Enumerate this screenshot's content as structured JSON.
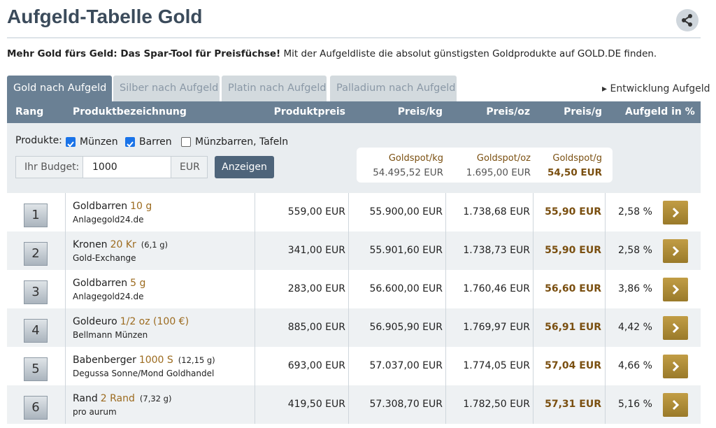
{
  "header": {
    "title": "Aufgeld-Tabelle Gold"
  },
  "intro": {
    "bold": "Mehr Gold fürs Geld: Das Spar-Tool für Preisfüchse!",
    "text": " Mit der Aufgeldliste die absolut günstigsten Goldprodukte auf GOLD.DE finden."
  },
  "tabs": [
    {
      "label": "Gold nach Aufgeld",
      "active": true
    },
    {
      "label": "Silber nach Aufgeld",
      "active": false
    },
    {
      "label": "Platin nach Aufgeld",
      "active": false
    },
    {
      "label": "Palladium nach Aufgeld",
      "active": false
    }
  ],
  "link": "Entwicklung Aufgeld",
  "table": {
    "headers": [
      "Rang",
      "Produktbezeichnung",
      "Produktpreis",
      "Preis/kg",
      "Preis/oz",
      "Preis/g",
      "Aufgeld in %"
    ],
    "filter": {
      "label": "Produkte:",
      "options": [
        {
          "label": "Münzen",
          "checked": true
        },
        {
          "label": "Barren",
          "checked": true
        },
        {
          "label": "Münzbarren, Tafeln",
          "checked": false
        }
      ],
      "budget_label": "Ihr Budget:",
      "budget_value": "1000",
      "currency": "EUR",
      "button": "Anzeigen"
    },
    "spot": [
      {
        "label": "Goldspot/kg",
        "value": "54.495,52 EUR"
      },
      {
        "label": "Goldspot/oz",
        "value": "1.695,00 EUR"
      },
      {
        "label": "Goldspot/g",
        "value": "54,50 EUR"
      }
    ],
    "rows": [
      {
        "rank": "1",
        "name": "Goldbarren",
        "size": "10 g",
        "weight": null,
        "dealer": "Anlagegold24.de",
        "price": "559,00 EUR",
        "kg": "55.900,00 EUR",
        "oz": "1.738,68 EUR",
        "g": "55,90 EUR",
        "premium": "2,58 %"
      },
      {
        "rank": "2",
        "name": "Kronen",
        "size": "20 Kr",
        "weight": "(6,1 g)",
        "dealer": "Gold-Exchange",
        "price": "341,00 EUR",
        "kg": "55.901,60 EUR",
        "oz": "1.738,73 EUR",
        "g": "55,90 EUR",
        "premium": "2,58 %"
      },
      {
        "rank": "3",
        "name": "Goldbarren",
        "size": "5 g",
        "weight": null,
        "dealer": "Anlagegold24.de",
        "price": "283,00 EUR",
        "kg": "56.600,00 EUR",
        "oz": "1.760,46 EUR",
        "g": "56,60 EUR",
        "premium": "3,86 %"
      },
      {
        "rank": "4",
        "name": "Goldeuro",
        "size": "1/2 oz (100 €)",
        "weight": null,
        "dealer": "Bellmann Münzen",
        "price": "885,00 EUR",
        "kg": "56.905,90 EUR",
        "oz": "1.769,97 EUR",
        "g": "56,91 EUR",
        "premium": "4,42 %"
      },
      {
        "rank": "5",
        "name": "Babenberger",
        "size": "1000 S",
        "weight": "(12,15 g)",
        "dealer": "Degussa Sonne/Mond Goldhandel",
        "price": "693,00 EUR",
        "kg": "57.037,00 EUR",
        "oz": "1.774,05 EUR",
        "g": "57,04 EUR",
        "premium": "4,66 %"
      },
      {
        "rank": "6",
        "name": "Rand",
        "size": "2 Rand",
        "weight": "(7,32 g)",
        "dealer": "pro aurum",
        "price": "419,50 EUR",
        "kg": "57.308,70 EUR",
        "oz": "1.782,50 EUR",
        "g": "57,31 EUR",
        "premium": "5,16 %"
      }
    ]
  }
}
